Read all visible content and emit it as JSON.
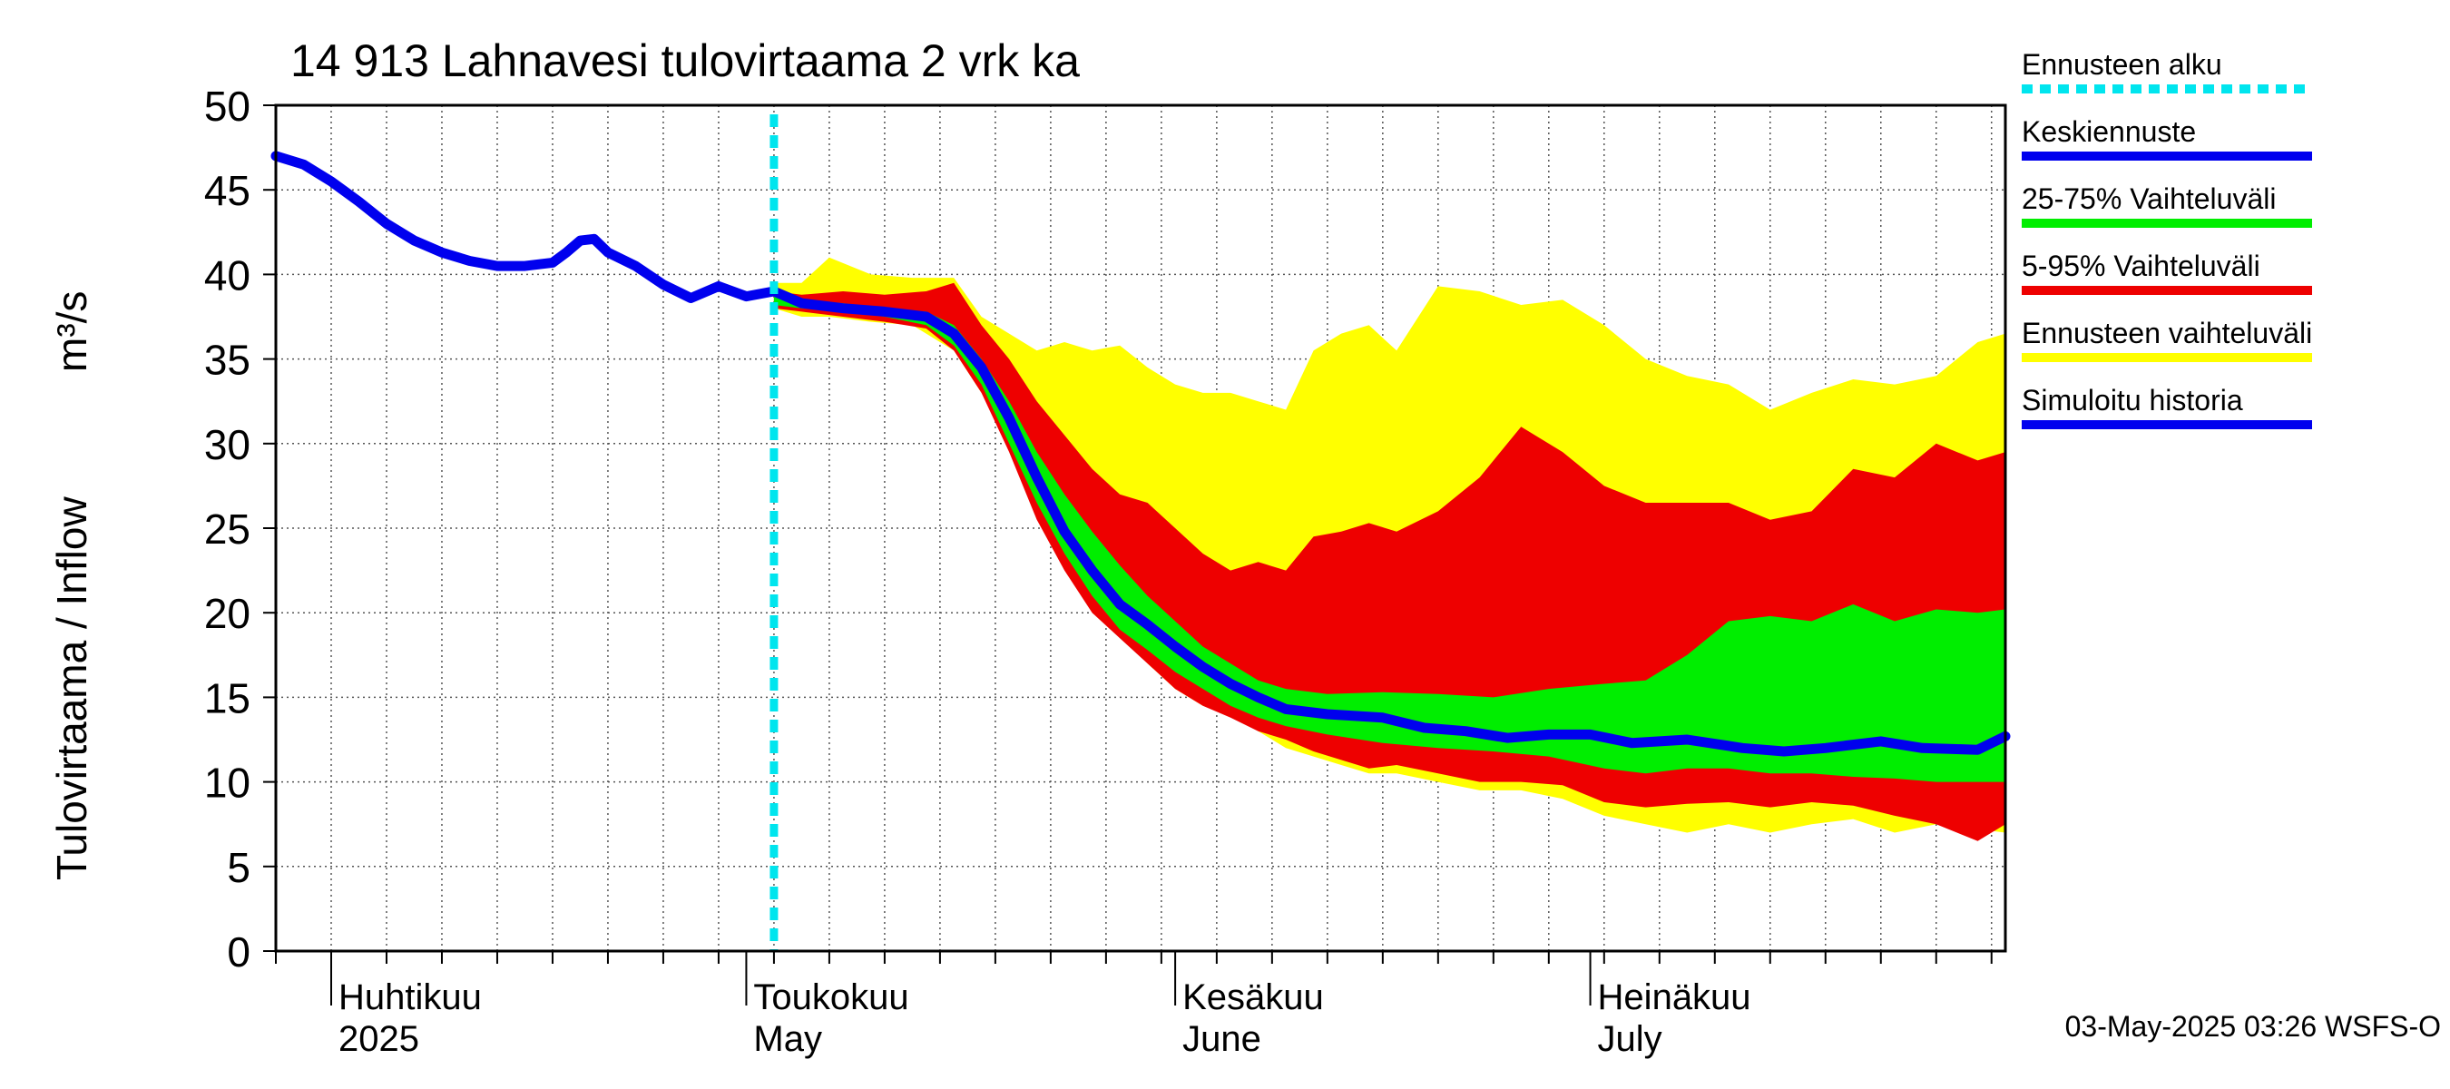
{
  "chart_data": {
    "type": "area",
    "title": "14 913 Lahnavesi tulovirtaama 2 vrk ka",
    "ylabel": "Tulovirtaama / Inflow",
    "yunit": "m³/s",
    "ylim": [
      0,
      50
    ],
    "yticks": [
      0,
      5,
      10,
      15,
      20,
      25,
      30,
      35,
      40,
      45,
      50
    ],
    "xlim": [
      "2025-03-28",
      "2025-07-31"
    ],
    "grid": true,
    "legend_position": "right",
    "forecast_start": "2025-05-03",
    "x_month_labels": [
      {
        "date": "2025-04-01",
        "fi": "Huhtikuu",
        "en": "2025"
      },
      {
        "date": "2025-05-01",
        "fi": "Toukokuu",
        "en": "May"
      },
      {
        "date": "2025-06-01",
        "fi": "Kesäkuu",
        "en": "June"
      },
      {
        "date": "2025-07-01",
        "fi": "Heinäkuu",
        "en": "July"
      }
    ],
    "legend": [
      {
        "label": "Ennusteen alku",
        "color": "#00e5ee",
        "style": "dotted"
      },
      {
        "label": "Keskiennuste",
        "color": "#0000ee",
        "style": "solid"
      },
      {
        "label": "25-75% Vaihteluväli",
        "color": "#00ee00",
        "style": "solid"
      },
      {
        "label": "5-95% Vaihteluväli",
        "color": "#ee0000",
        "style": "solid"
      },
      {
        "label": "Ennusteen vaihteluväli",
        "color": "#ffff00",
        "style": "solid"
      },
      {
        "label": "Simuloitu historia",
        "color": "#0000ee",
        "style": "solid"
      }
    ],
    "series": [
      {
        "name": "Simuloitu historia",
        "points": [
          [
            "2025-03-28",
            47.0
          ],
          [
            "2025-03-30",
            46.5
          ],
          [
            "2025-04-01",
            45.5
          ],
          [
            "2025-04-03",
            44.3
          ],
          [
            "2025-04-05",
            43.0
          ],
          [
            "2025-04-07",
            42.0
          ],
          [
            "2025-04-09",
            41.3
          ],
          [
            "2025-04-11",
            40.8
          ],
          [
            "2025-04-13",
            40.5
          ],
          [
            "2025-04-15",
            40.5
          ],
          [
            "2025-04-17",
            40.7
          ],
          [
            "2025-04-18",
            41.3
          ],
          [
            "2025-04-19",
            42.0
          ],
          [
            "2025-04-20",
            42.1
          ],
          [
            "2025-04-21",
            41.3
          ],
          [
            "2025-04-23",
            40.5
          ],
          [
            "2025-04-25",
            39.4
          ],
          [
            "2025-04-27",
            38.6
          ],
          [
            "2025-04-29",
            39.3
          ],
          [
            "2025-05-01",
            38.7
          ],
          [
            "2025-05-03",
            39.0
          ]
        ]
      },
      {
        "name": "Keskiennuste",
        "points": [
          [
            "2025-05-03",
            39.0
          ],
          [
            "2025-05-05",
            38.3
          ],
          [
            "2025-05-08",
            38.0
          ],
          [
            "2025-05-11",
            37.8
          ],
          [
            "2025-05-14",
            37.5
          ],
          [
            "2025-05-16",
            36.5
          ],
          [
            "2025-05-18",
            34.5
          ],
          [
            "2025-05-20",
            31.5
          ],
          [
            "2025-05-22",
            28.0
          ],
          [
            "2025-05-24",
            24.8
          ],
          [
            "2025-05-26",
            22.5
          ],
          [
            "2025-05-28",
            20.5
          ],
          [
            "2025-05-30",
            19.3
          ],
          [
            "2025-06-01",
            18.0
          ],
          [
            "2025-06-03",
            16.8
          ],
          [
            "2025-06-05",
            15.8
          ],
          [
            "2025-06-07",
            15.0
          ],
          [
            "2025-06-09",
            14.3
          ],
          [
            "2025-06-12",
            14.0
          ],
          [
            "2025-06-16",
            13.8
          ],
          [
            "2025-06-19",
            13.2
          ],
          [
            "2025-06-22",
            13.0
          ],
          [
            "2025-06-25",
            12.6
          ],
          [
            "2025-06-28",
            12.8
          ],
          [
            "2025-07-01",
            12.8
          ],
          [
            "2025-07-04",
            12.3
          ],
          [
            "2025-07-08",
            12.5
          ],
          [
            "2025-07-12",
            12.0
          ],
          [
            "2025-07-15",
            11.8
          ],
          [
            "2025-07-18",
            12.0
          ],
          [
            "2025-07-22",
            12.4
          ],
          [
            "2025-07-25",
            12.0
          ],
          [
            "2025-07-29",
            11.9
          ],
          [
            "2025-07-31",
            12.7
          ]
        ]
      }
    ],
    "bands": [
      {
        "name": "Ennusteen vaihteluväli",
        "points": [
          [
            "2025-05-03",
            39.5,
            38.0
          ],
          [
            "2025-05-05",
            39.5,
            37.5
          ],
          [
            "2025-05-07",
            41.0,
            37.5
          ],
          [
            "2025-05-10",
            40.0,
            37.2
          ],
          [
            "2025-05-13",
            39.8,
            37.0
          ],
          [
            "2025-05-16",
            39.8,
            35.5
          ],
          [
            "2025-05-18",
            37.5,
            33.0
          ],
          [
            "2025-05-20",
            36.5,
            30.0
          ],
          [
            "2025-05-22",
            35.5,
            27.0
          ],
          [
            "2025-05-24",
            36.0,
            24.0
          ],
          [
            "2025-05-26",
            35.5,
            21.5
          ],
          [
            "2025-05-28",
            35.8,
            19.0
          ],
          [
            "2025-05-30",
            34.5,
            17.0
          ],
          [
            "2025-06-01",
            33.5,
            15.5
          ],
          [
            "2025-06-03",
            33.0,
            14.5
          ],
          [
            "2025-06-05",
            33.0,
            14.0
          ],
          [
            "2025-06-07",
            32.5,
            13.0
          ],
          [
            "2025-06-09",
            32.0,
            12.0
          ],
          [
            "2025-06-11",
            35.5,
            11.5
          ],
          [
            "2025-06-13",
            36.5,
            11.0
          ],
          [
            "2025-06-15",
            37.0,
            10.5
          ],
          [
            "2025-06-17",
            35.5,
            10.5
          ],
          [
            "2025-06-20",
            39.3,
            10.0
          ],
          [
            "2025-06-23",
            39.0,
            9.5
          ],
          [
            "2025-06-26",
            38.2,
            9.5
          ],
          [
            "2025-06-29",
            38.5,
            9.0
          ],
          [
            "2025-07-02",
            37.0,
            8.0
          ],
          [
            "2025-07-05",
            35.0,
            7.5
          ],
          [
            "2025-07-08",
            34.0,
            7.0
          ],
          [
            "2025-07-11",
            33.5,
            7.5
          ],
          [
            "2025-07-14",
            32.0,
            7.0
          ],
          [
            "2025-07-17",
            33.0,
            7.5
          ],
          [
            "2025-07-20",
            33.8,
            7.8
          ],
          [
            "2025-07-23",
            33.5,
            7.0
          ],
          [
            "2025-07-26",
            34.0,
            7.5
          ],
          [
            "2025-07-29",
            36.0,
            7.2
          ],
          [
            "2025-07-31",
            36.5,
            7.0
          ]
        ]
      },
      {
        "name": "5-95% Vaihteluväli",
        "points": [
          [
            "2025-05-03",
            39.0,
            38.0
          ],
          [
            "2025-05-05",
            38.8,
            37.8
          ],
          [
            "2025-05-08",
            39.0,
            37.5
          ],
          [
            "2025-05-11",
            38.8,
            37.2
          ],
          [
            "2025-05-14",
            39.0,
            36.8
          ],
          [
            "2025-05-16",
            39.5,
            35.5
          ],
          [
            "2025-05-18",
            37.0,
            33.0
          ],
          [
            "2025-05-20",
            35.0,
            29.5
          ],
          [
            "2025-05-22",
            32.5,
            25.5
          ],
          [
            "2025-05-24",
            30.5,
            22.5
          ],
          [
            "2025-05-26",
            28.5,
            20.0
          ],
          [
            "2025-05-28",
            27.0,
            18.5
          ],
          [
            "2025-05-30",
            26.5,
            17.0
          ],
          [
            "2025-06-01",
            25.0,
            15.5
          ],
          [
            "2025-06-03",
            23.5,
            14.5
          ],
          [
            "2025-06-05",
            22.5,
            13.8
          ],
          [
            "2025-06-07",
            23.0,
            13.0
          ],
          [
            "2025-06-09",
            22.5,
            12.5
          ],
          [
            "2025-06-11",
            24.5,
            11.8
          ],
          [
            "2025-06-13",
            24.8,
            11.3
          ],
          [
            "2025-06-15",
            25.3,
            10.8
          ],
          [
            "2025-06-17",
            24.8,
            11.0
          ],
          [
            "2025-06-20",
            26.0,
            10.5
          ],
          [
            "2025-06-23",
            28.0,
            10.0
          ],
          [
            "2025-06-26",
            31.0,
            10.0
          ],
          [
            "2025-06-29",
            29.5,
            9.8
          ],
          [
            "2025-07-02",
            27.5,
            8.8
          ],
          [
            "2025-07-05",
            26.5,
            8.5
          ],
          [
            "2025-07-08",
            26.5,
            8.7
          ],
          [
            "2025-07-11",
            26.5,
            8.8
          ],
          [
            "2025-07-14",
            25.5,
            8.5
          ],
          [
            "2025-07-17",
            26.0,
            8.8
          ],
          [
            "2025-07-20",
            28.5,
            8.6
          ],
          [
            "2025-07-23",
            28.0,
            8.0
          ],
          [
            "2025-07-26",
            30.0,
            7.5
          ],
          [
            "2025-07-29",
            29.0,
            6.5
          ],
          [
            "2025-07-31",
            29.5,
            7.5
          ]
        ]
      },
      {
        "name": "25-75% Vaihteluväli",
        "points": [
          [
            "2025-05-03",
            38.8,
            38.2
          ],
          [
            "2025-05-05",
            38.5,
            38.0
          ],
          [
            "2025-05-08",
            38.3,
            37.8
          ],
          [
            "2025-05-11",
            38.0,
            37.5
          ],
          [
            "2025-05-14",
            37.8,
            37.0
          ],
          [
            "2025-05-16",
            37.0,
            35.8
          ],
          [
            "2025-05-18",
            35.0,
            33.5
          ],
          [
            "2025-05-20",
            32.5,
            30.0
          ],
          [
            "2025-05-22",
            29.5,
            26.5
          ],
          [
            "2025-05-24",
            27.0,
            23.5
          ],
          [
            "2025-05-26",
            24.8,
            21.0
          ],
          [
            "2025-05-28",
            22.8,
            19.0
          ],
          [
            "2025-05-30",
            21.0,
            17.8
          ],
          [
            "2025-06-01",
            19.5,
            16.5
          ],
          [
            "2025-06-03",
            18.0,
            15.5
          ],
          [
            "2025-06-05",
            17.0,
            14.5
          ],
          [
            "2025-06-07",
            16.0,
            13.8
          ],
          [
            "2025-06-09",
            15.5,
            13.3
          ],
          [
            "2025-06-12",
            15.2,
            12.8
          ],
          [
            "2025-06-16",
            15.3,
            12.3
          ],
          [
            "2025-06-20",
            15.2,
            12.0
          ],
          [
            "2025-06-24",
            15.0,
            11.8
          ],
          [
            "2025-06-28",
            15.5,
            11.5
          ],
          [
            "2025-07-02",
            15.8,
            10.8
          ],
          [
            "2025-07-05",
            16.0,
            10.5
          ],
          [
            "2025-07-08",
            17.5,
            10.8
          ],
          [
            "2025-07-11",
            19.5,
            10.8
          ],
          [
            "2025-07-14",
            19.8,
            10.5
          ],
          [
            "2025-07-17",
            19.5,
            10.5
          ],
          [
            "2025-07-20",
            20.5,
            10.3
          ],
          [
            "2025-07-23",
            19.5,
            10.2
          ],
          [
            "2025-07-26",
            20.2,
            10.0
          ],
          [
            "2025-07-29",
            20.0,
            10.0
          ],
          [
            "2025-07-31",
            20.2,
            10.0
          ]
        ]
      }
    ]
  },
  "timestamp": "03-May-2025 03:26 WSFS-O"
}
